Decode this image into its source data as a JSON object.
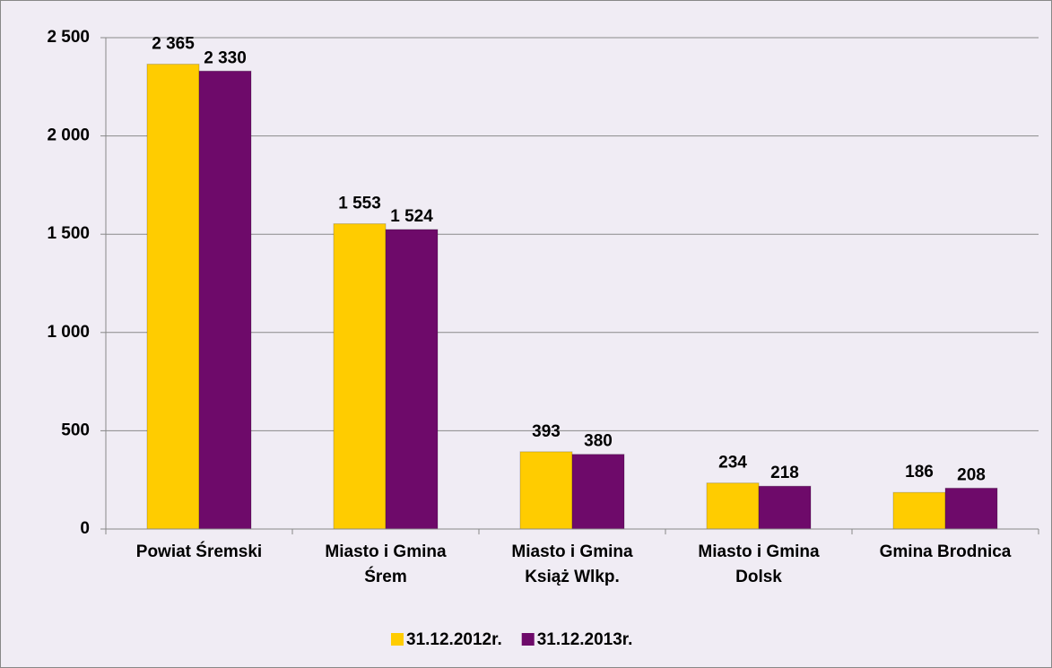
{
  "chart_data": {
    "type": "bar",
    "categories": [
      "Powiat Śremski",
      "Miasto i Gmina Śrem",
      "Miasto i Gmina Książ Wlkp.",
      "Miasto i Gmina Dolsk",
      "Gmina Brodnica"
    ],
    "series": [
      {
        "name": "31.12.2012r.",
        "color": "#ffcc00",
        "values": [
          2365,
          1553,
          393,
          234,
          186
        ],
        "value_labels": [
          "2 365",
          "1 553",
          "393",
          "234",
          "186"
        ]
      },
      {
        "name": "31.12.2013r.",
        "color": "#6e0a6a",
        "values": [
          2330,
          1524,
          380,
          218,
          208
        ],
        "value_labels": [
          "2 330",
          "1 524",
          "380",
          "218",
          "208"
        ]
      }
    ],
    "ylim": [
      0,
      2500
    ],
    "yticks": [
      0,
      500,
      {
        "value": 1000,
        "label": "1 000"
      },
      {
        "value": 1500,
        "label": "1 500"
      },
      {
        "value": 2000,
        "label": "2 000"
      },
      {
        "value": 2500,
        "label": "2 500"
      }
    ],
    "grid": true,
    "legend": "bottom"
  }
}
